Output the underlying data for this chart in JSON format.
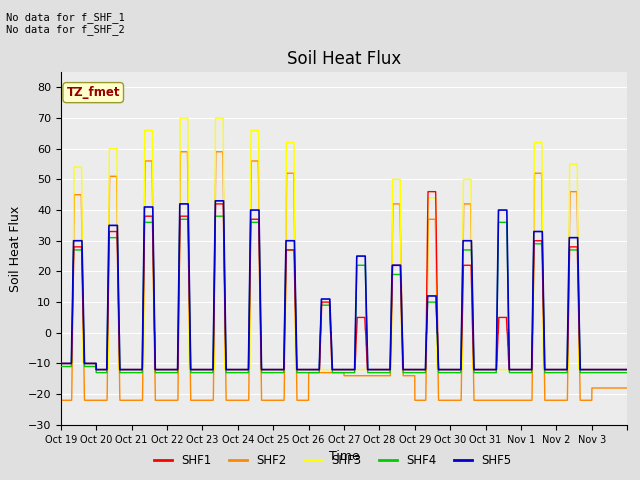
{
  "title": "Soil Heat Flux",
  "ylabel": "Soil Heat Flux",
  "xlabel": "Time",
  "annotation_lines": [
    "No data for f_SHF_1",
    "No data for f_SHF_2"
  ],
  "legend_box_label": "TZ_fmet",
  "ylim": [
    -30,
    85
  ],
  "yticks": [
    -30,
    -20,
    -10,
    0,
    10,
    20,
    30,
    40,
    50,
    60,
    70,
    80
  ],
  "xtick_labels": [
    "Oct 19",
    "Oct 20",
    "Oct 21",
    "Oct 22",
    "Oct 23",
    "Oct 24",
    "Oct 25",
    "Oct 26",
    "Oct 27",
    "Oct 28",
    "Oct 29",
    "Oct 30",
    "Oct 31",
    "Nov 1",
    "Nov 2",
    "Nov 3"
  ],
  "series_colors": {
    "SHF1": "#ff0000",
    "SHF2": "#ff8800",
    "SHF3": "#ffff00",
    "SHF4": "#00cc00",
    "SHF5": "#0000cc"
  },
  "background_color": "#e0e0e0",
  "plot_bg_color": "#ececec",
  "grid_color": "#ffffff",
  "title_fontsize": 12,
  "label_fontsize": 9,
  "tick_fontsize": 8
}
